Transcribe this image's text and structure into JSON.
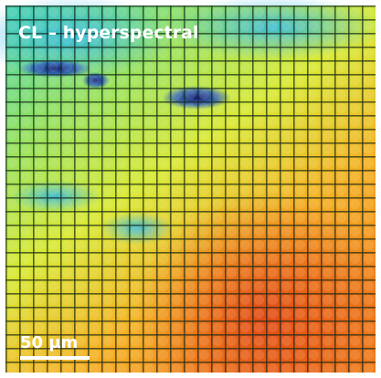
{
  "label": "CL – hyperspectral",
  "scale_bar": {
    "label": "50 µm"
  }
}
